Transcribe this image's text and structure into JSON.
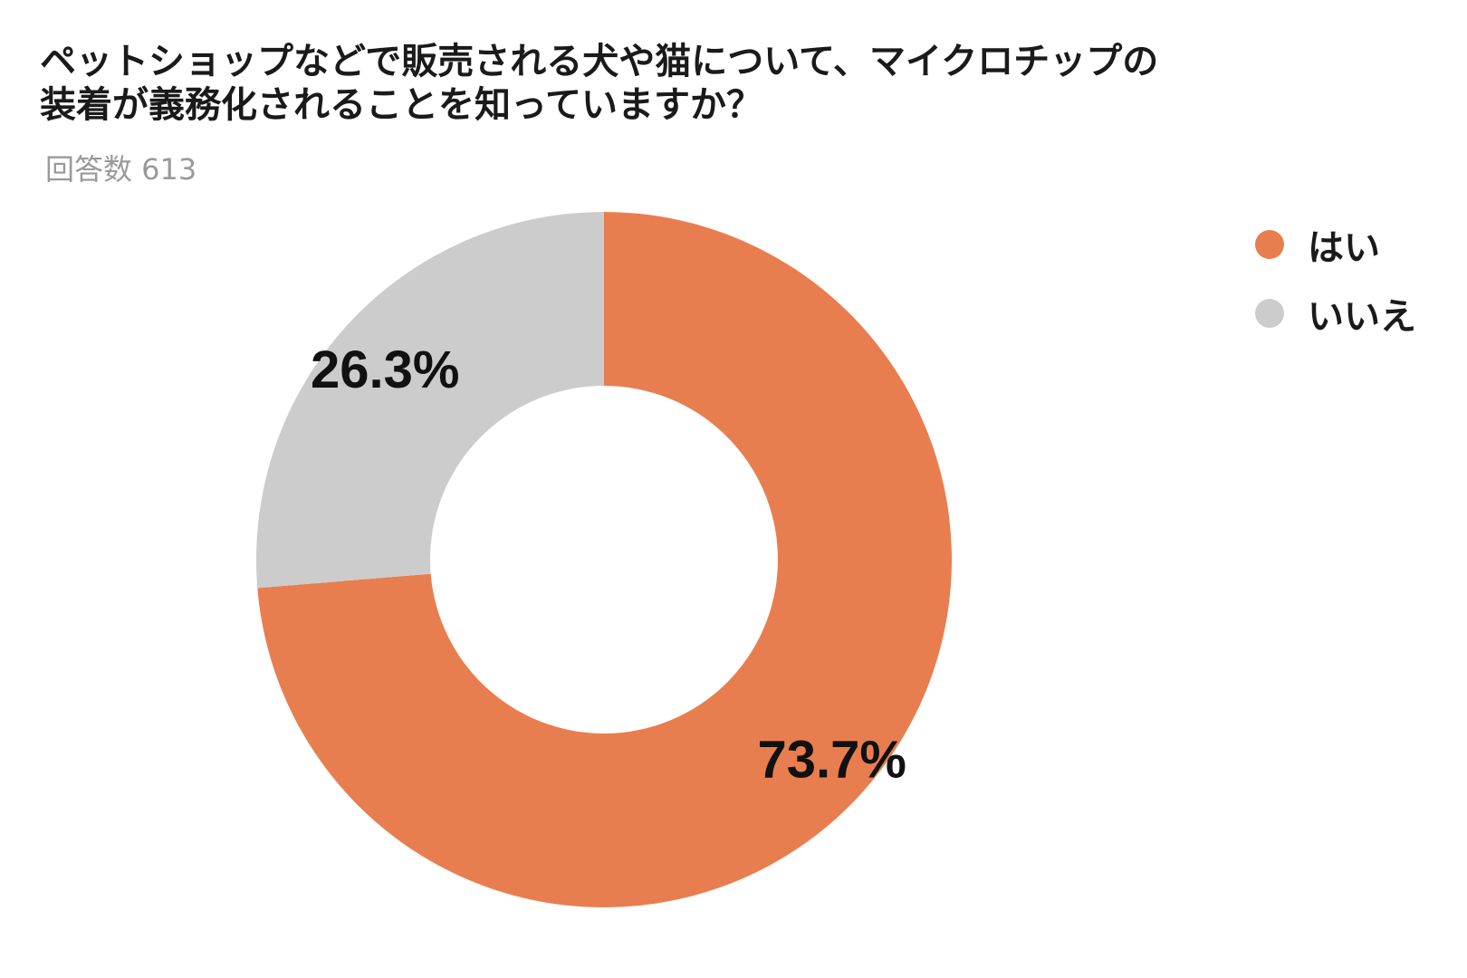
{
  "header": {
    "title_line1": "ペットショップなどで販売される犬や猫について、マイクロチップの",
    "title_line2": "装着が義務化されることを知っていますか？",
    "subtitle": "回答数 613"
  },
  "legend": [
    {
      "label": "はい",
      "color": "#E87E4F"
    },
    {
      "label": "いいえ",
      "color": "#CCCCCC"
    }
  ],
  "chart_data": {
    "type": "pie",
    "variant": "donut",
    "title": "ペットショップなどで販売される犬や猫について、マイクロチップの装着が義務化されることを知っていますか？",
    "subtitle": "回答数 613",
    "categories": [
      "はい",
      "いいえ"
    ],
    "values": [
      73.7,
      26.3
    ],
    "data_labels": [
      "73.7%",
      "26.3%"
    ],
    "colors": [
      "#E87E4F",
      "#CCCCCC"
    ],
    "start": "top (12 o'clock), clockwise",
    "legend": "top-right"
  }
}
